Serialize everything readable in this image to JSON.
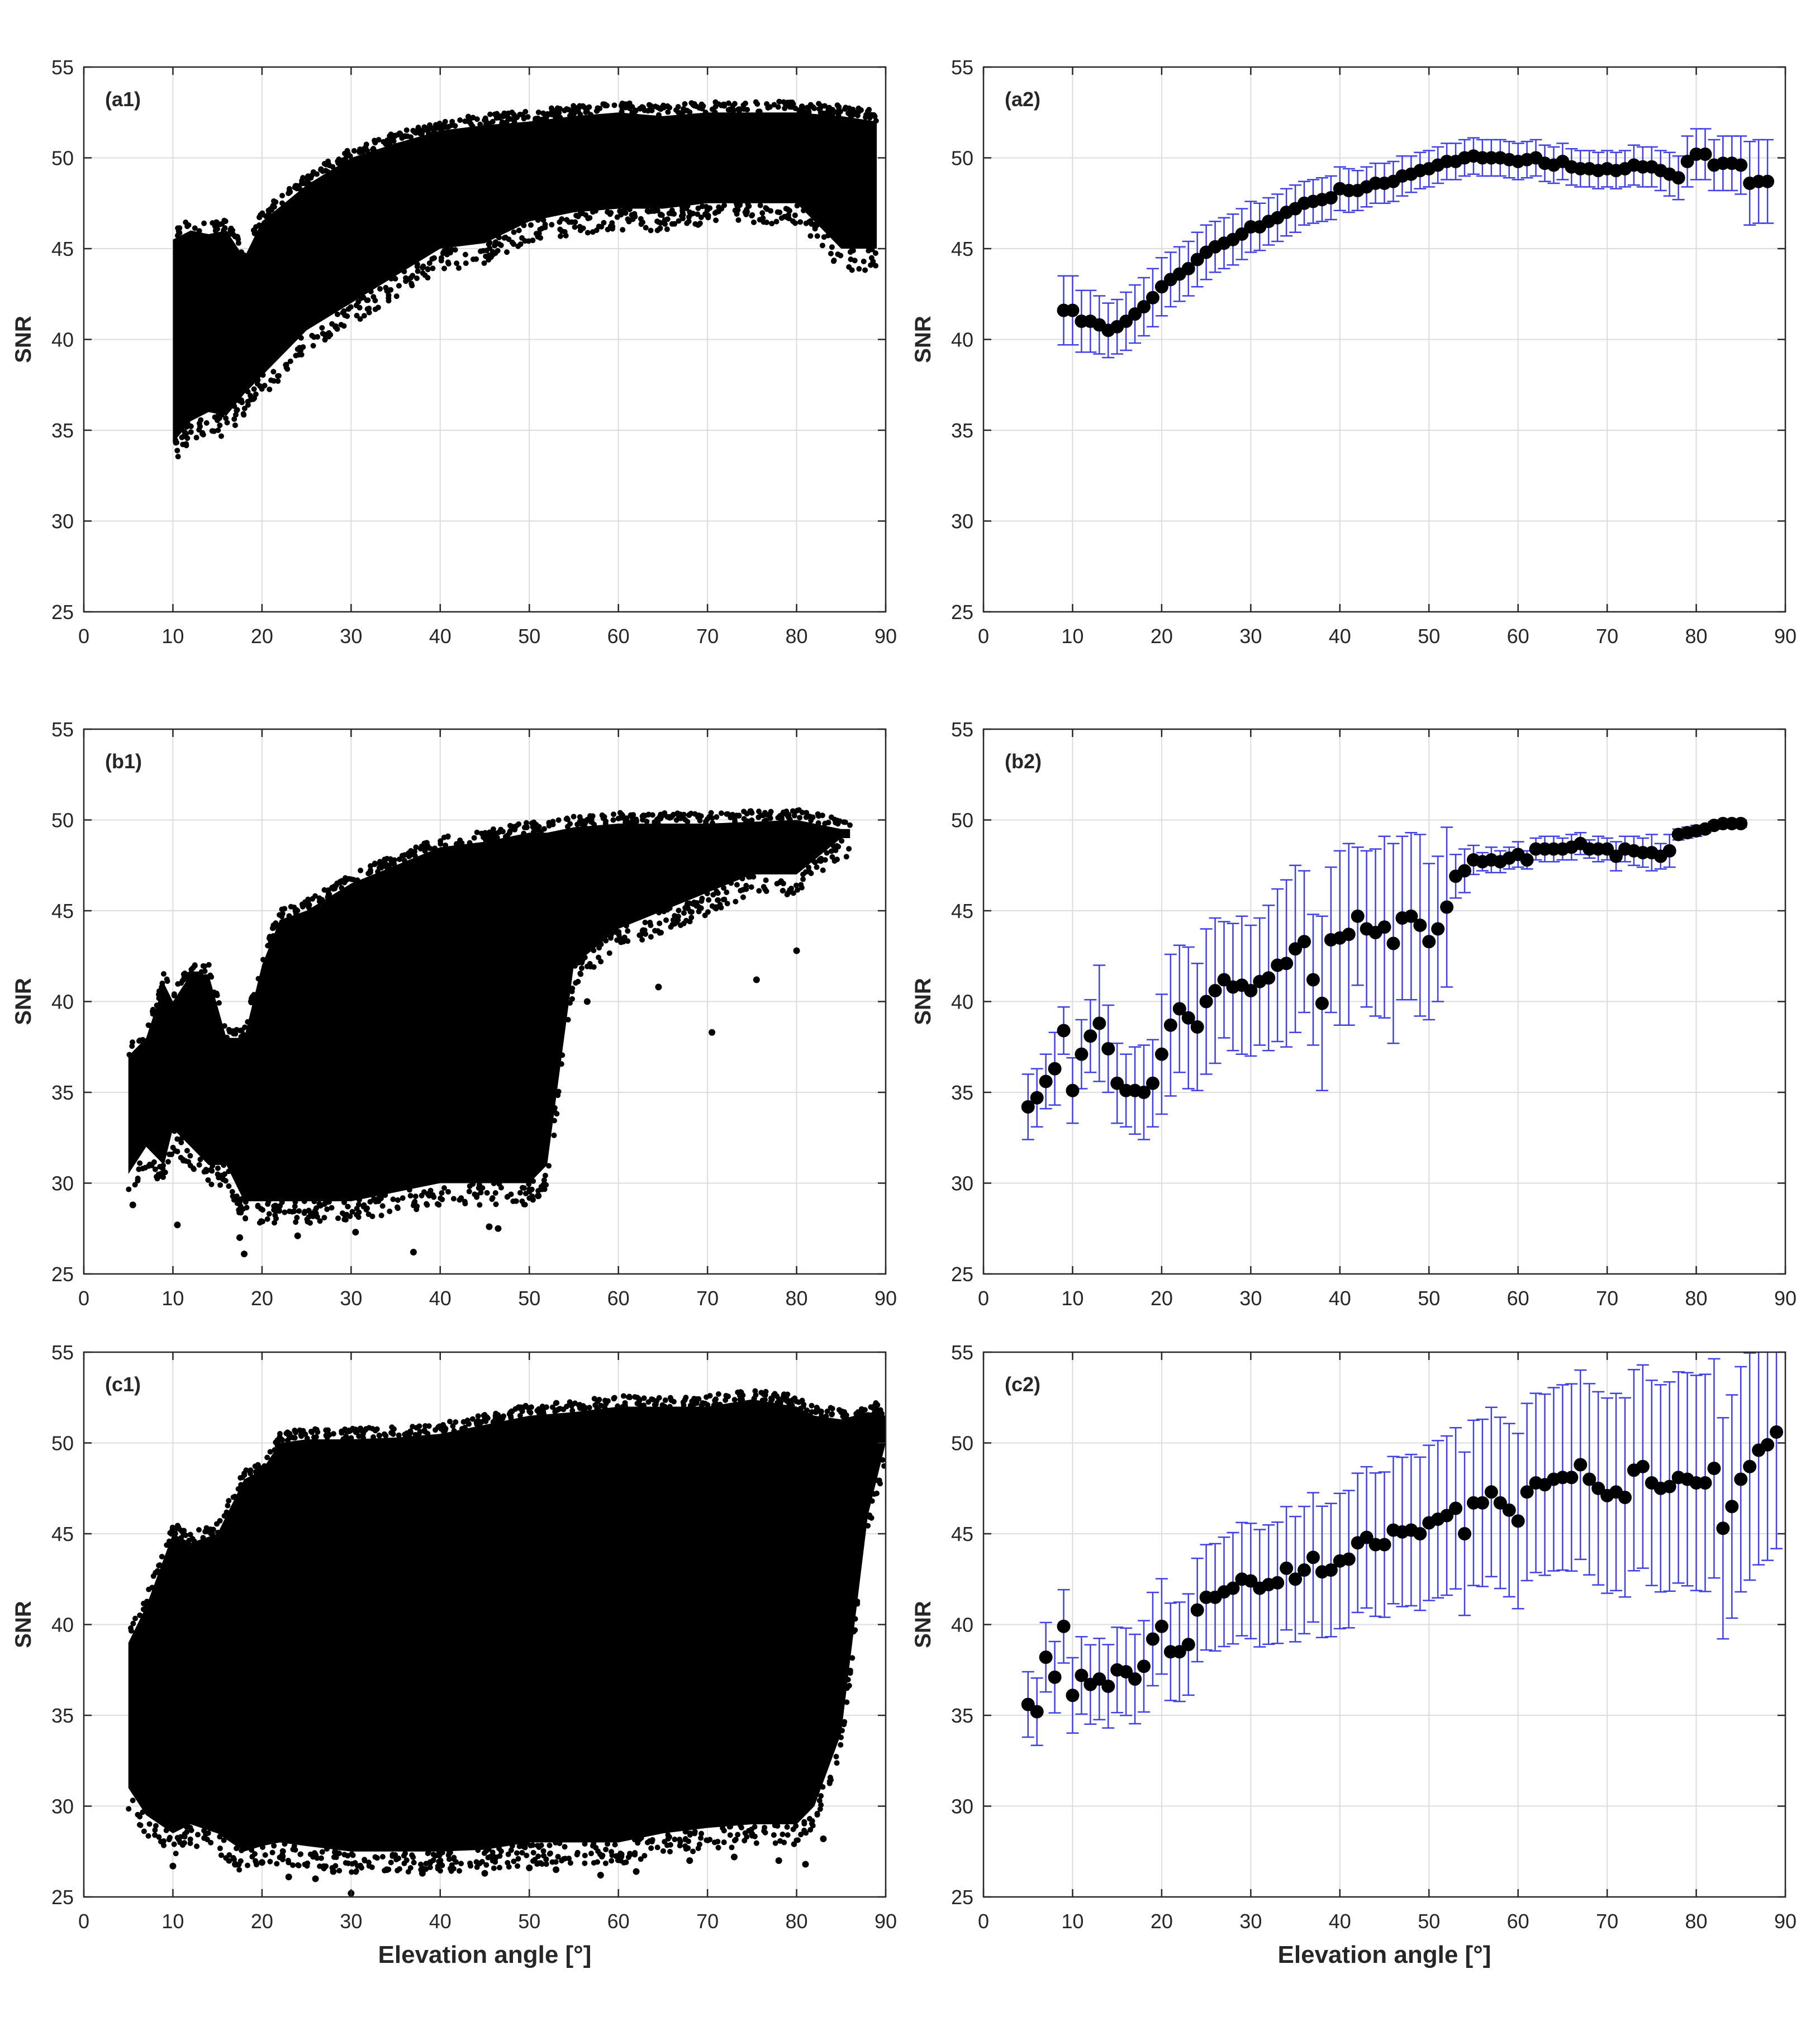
{
  "colors": {
    "axis": "#262626",
    "grid": "#dcdcdc",
    "marker": "#000000",
    "errorbar": "#3f3fe6"
  },
  "chart_data": [
    {
      "id": "a1",
      "type": "scatter",
      "panel_label": "(a1)",
      "xlabel": "",
      "ylabel": "SNR",
      "xlim": [
        0,
        90
      ],
      "ylim": [
        25,
        55
      ],
      "xticks": [
        0,
        10,
        20,
        30,
        40,
        50,
        60,
        70,
        80,
        90
      ],
      "yticks": [
        25,
        30,
        35,
        40,
        45,
        50,
        55
      ],
      "grid": true,
      "density_band": {
        "x": [
          10,
          12,
          14,
          16,
          18,
          20,
          25,
          30,
          35,
          40,
          45,
          50,
          55,
          60,
          65,
          70,
          75,
          80,
          85,
          89
        ],
        "upper": [
          45.5,
          46,
          45.8,
          46,
          44.5,
          46.5,
          48.5,
          50,
          50.8,
          51.5,
          51.8,
          52,
          52.3,
          52.5,
          52.3,
          52.5,
          52.5,
          52.5,
          52.3,
          52
        ],
        "lower": [
          34.3,
          35.5,
          36,
          35.8,
          37,
          38,
          40.5,
          42,
          43.5,
          45,
          45.3,
          46.5,
          47,
          47.2,
          47.2,
          47.5,
          47.5,
          47.5,
          45,
          45
        ]
      }
    },
    {
      "id": "a2",
      "type": "errorbar",
      "panel_label": "(a2)",
      "xlabel": "",
      "ylabel": "SNR",
      "xlim": [
        0,
        90
      ],
      "ylim": [
        25,
        55
      ],
      "xticks": [
        0,
        10,
        20,
        30,
        40,
        50,
        60,
        70,
        80,
        90
      ],
      "yticks": [
        25,
        30,
        35,
        40,
        45,
        50,
        55
      ],
      "grid": true,
      "x": [
        9,
        10,
        11,
        12,
        13,
        14,
        15,
        16,
        17,
        18,
        19,
        20,
        21,
        22,
        23,
        24,
        25,
        26,
        27,
        28,
        29,
        30,
        31,
        32,
        33,
        34,
        35,
        36,
        37,
        38,
        39,
        40,
        41,
        42,
        43,
        44,
        45,
        46,
        47,
        48,
        49,
        50,
        51,
        52,
        53,
        54,
        55,
        56,
        57,
        58,
        59,
        60,
        61,
        62,
        63,
        64,
        65,
        66,
        67,
        68,
        69,
        70,
        71,
        72,
        73,
        74,
        75,
        76,
        77,
        78,
        79,
        80,
        81,
        82,
        83,
        84,
        85,
        86,
        87,
        88
      ],
      "y": [
        41.6,
        41.6,
        41.0,
        41.0,
        40.8,
        40.5,
        40.7,
        41.0,
        41.4,
        41.8,
        42.3,
        42.9,
        43.3,
        43.6,
        43.9,
        44.4,
        44.8,
        45.1,
        45.3,
        45.5,
        45.8,
        46.2,
        46.2,
        46.5,
        46.7,
        47.0,
        47.2,
        47.5,
        47.6,
        47.7,
        47.8,
        48.3,
        48.2,
        48.2,
        48.4,
        48.6,
        48.6,
        48.7,
        49.0,
        49.1,
        49.3,
        49.4,
        49.6,
        49.8,
        49.8,
        50.0,
        50.1,
        50.0,
        50.0,
        50.0,
        49.9,
        49.8,
        49.9,
        50.0,
        49.7,
        49.6,
        49.8,
        49.5,
        49.4,
        49.4,
        49.3,
        49.4,
        49.3,
        49.4,
        49.6,
        49.5,
        49.5,
        49.3,
        49.1,
        48.9,
        49.8,
        50.2,
        50.2,
        49.6,
        49.7,
        49.7,
        49.6,
        48.6,
        48.7,
        48.7
      ],
      "err": [
        1.9,
        1.9,
        1.7,
        1.7,
        1.6,
        1.5,
        1.5,
        1.6,
        1.6,
        1.6,
        1.6,
        1.6,
        1.5,
        1.5,
        1.5,
        1.5,
        1.5,
        1.4,
        1.4,
        1.4,
        1.4,
        1.4,
        1.3,
        1.3,
        1.3,
        1.3,
        1.3,
        1.2,
        1.2,
        1.2,
        1.2,
        1.2,
        1.2,
        1.1,
        1.1,
        1.1,
        1.1,
        1.1,
        1.1,
        1.0,
        1.0,
        1.0,
        1.0,
        1.0,
        1.0,
        1.0,
        1.0,
        1.0,
        1.0,
        1.0,
        1.0,
        1.0,
        1.0,
        1.0,
        1.0,
        1.0,
        1.0,
        1.0,
        1.0,
        1.0,
        1.0,
        1.0,
        1.0,
        1.0,
        1.1,
        1.1,
        1.1,
        1.1,
        1.2,
        1.2,
        1.4,
        1.4,
        1.4,
        1.4,
        1.5,
        1.5,
        1.6,
        2.3,
        2.3,
        2.3
      ]
    },
    {
      "id": "b1",
      "type": "scatter",
      "panel_label": "(b1)",
      "xlabel": "",
      "ylabel": "SNR",
      "xlim": [
        0,
        90
      ],
      "ylim": [
        25,
        55
      ],
      "xticks": [
        0,
        10,
        20,
        30,
        40,
        50,
        60,
        70,
        80,
        90
      ],
      "yticks": [
        25,
        30,
        35,
        40,
        45,
        50,
        55
      ],
      "grid": true,
      "density_band": {
        "x": [
          5,
          7,
          9,
          10,
          12,
          14,
          16,
          18,
          20,
          22,
          25,
          30,
          35,
          40,
          45,
          50,
          52,
          55,
          60,
          65,
          70,
          75,
          80,
          85,
          86
        ],
        "upper": [
          37,
          38,
          41,
          40,
          41.5,
          41.5,
          38,
          38,
          42,
          44.5,
          45,
          46.5,
          47.5,
          48.5,
          48.8,
          49.3,
          49.3,
          49.6,
          49.8,
          49.8,
          49.8,
          49.9,
          50,
          49.5,
          49.5
        ],
        "lower": [
          30.5,
          32,
          31,
          33,
          32,
          31,
          31,
          29,
          29,
          29,
          29,
          29,
          29.5,
          30,
          30,
          30,
          31,
          42,
          44,
          45,
          46,
          47,
          47,
          49,
          49
        ]
      },
      "outliers": {
        "x": [
          5.5,
          10.5,
          17.5,
          18,
          24,
          30.5,
          37,
          45.5,
          46.5,
          51,
          56.5,
          64.5,
          70.5,
          75.5,
          80
        ],
        "y": [
          28.8,
          27.7,
          27.0,
          26.1,
          27.1,
          27.3,
          26.2,
          27.6,
          27.5,
          29.3,
          40.0,
          40.8,
          38.3,
          41.2,
          42.8
        ]
      }
    },
    {
      "id": "b2",
      "type": "errorbar",
      "panel_label": "(b2)",
      "xlabel": "",
      "ylabel": "SNR",
      "xlim": [
        0,
        90
      ],
      "ylim": [
        25,
        55
      ],
      "xticks": [
        0,
        10,
        20,
        30,
        40,
        50,
        60,
        70,
        80,
        90
      ],
      "yticks": [
        25,
        30,
        35,
        40,
        45,
        50,
        55
      ],
      "grid": true,
      "x": [
        5,
        6,
        7,
        8,
        9,
        10,
        11,
        12,
        13,
        14,
        15,
        16,
        17,
        18,
        19,
        20,
        21,
        22,
        23,
        24,
        25,
        26,
        27,
        28,
        29,
        30,
        31,
        32,
        33,
        34,
        35,
        36,
        37,
        38,
        39,
        40,
        41,
        42,
        43,
        44,
        45,
        46,
        47,
        48,
        49,
        50,
        51,
        52,
        53,
        54,
        55,
        56,
        57,
        58,
        59,
        60,
        61,
        62,
        63,
        64,
        65,
        66,
        67,
        68,
        69,
        70,
        71,
        72,
        73,
        74,
        75,
        76,
        77,
        78,
        79,
        80,
        81,
        82,
        83,
        84,
        85
      ],
      "y": [
        34.2,
        34.7,
        35.6,
        36.3,
        38.4,
        35.1,
        37.1,
        38.1,
        38.8,
        37.4,
        35.5,
        35.1,
        35.1,
        35.0,
        35.5,
        37.1,
        38.7,
        39.6,
        39.1,
        38.6,
        40.0,
        40.6,
        41.2,
        40.8,
        40.9,
        40.6,
        41.1,
        41.3,
        42.0,
        42.1,
        42.9,
        43.3,
        41.2,
        39.9,
        43.4,
        43.5,
        43.7,
        44.7,
        44.0,
        43.8,
        44.1,
        43.2,
        44.6,
        44.7,
        44.2,
        43.3,
        44.0,
        45.2,
        46.9,
        47.2,
        47.8,
        47.7,
        47.8,
        47.7,
        47.9,
        48.1,
        47.8,
        48.4,
        48.4,
        48.4,
        48.4,
        48.5,
        48.7,
        48.4,
        48.4,
        48.4,
        48.0,
        48.4,
        48.3,
        48.2,
        48.2,
        48.0,
        48.3,
        49.2,
        49.3,
        49.4,
        49.5,
        49.7,
        49.8,
        49.8,
        49.8
      ],
      "err": [
        1.8,
        1.6,
        1.5,
        2.0,
        1.3,
        1.8,
        1.9,
        2.0,
        3.2,
        2.4,
        2.2,
        2.0,
        2.4,
        2.6,
        2.4,
        3.3,
        3.9,
        3.5,
        3.9,
        3.5,
        4.0,
        4.0,
        3.2,
        3.5,
        3.8,
        3.6,
        3.5,
        4.0,
        4.2,
        4.6,
        4.6,
        3.9,
        3.6,
        4.8,
        4.0,
        4.8,
        5.0,
        3.8,
        4.3,
        4.6,
        5.0,
        5.5,
        4.5,
        4.6,
        5.0,
        4.3,
        4.0,
        4.4,
        1.2,
        1.2,
        0.8,
        0.5,
        0.7,
        0.6,
        0.6,
        0.7,
        0.5,
        0.6,
        0.7,
        0.7,
        0.6,
        0.7,
        0.6,
        0.5,
        0.7,
        0.6,
        0.8,
        0.7,
        0.8,
        0.8,
        1.0,
        0.7,
        0.9,
        0.3,
        0.3,
        0.3,
        0.2,
        0.2,
        0.2,
        0.2,
        0.2
      ]
    },
    {
      "id": "c1",
      "type": "scatter",
      "panel_label": "(c1)",
      "xlabel": "Elevation angle [°]",
      "ylabel": "SNR",
      "xlim": [
        0,
        90
      ],
      "ylim": [
        25,
        55
      ],
      "xticks": [
        0,
        10,
        20,
        30,
        40,
        50,
        60,
        70,
        80,
        90
      ],
      "yticks": [
        25,
        30,
        35,
        40,
        45,
        50,
        55
      ],
      "grid": true,
      "density_band": {
        "x": [
          5,
          7,
          10,
          12,
          15,
          18,
          20,
          22,
          25,
          30,
          35,
          40,
          45,
          50,
          55,
          60,
          65,
          70,
          75,
          80,
          82,
          85,
          88,
          90
        ],
        "upper": [
          39,
          41,
          45,
          44.5,
          45,
          48,
          48.5,
          50,
          50.2,
          50.2,
          50.3,
          50.5,
          51,
          51.5,
          51.7,
          52,
          52,
          52,
          52.4,
          52,
          51.5,
          51.3,
          51.7,
          51.5
        ],
        "lower": [
          31,
          29.5,
          28.5,
          29,
          28.5,
          27.5,
          27.8,
          28,
          27.8,
          27.5,
          27.5,
          27.5,
          27.6,
          28,
          28,
          28,
          28.5,
          28.8,
          29,
          29,
          30,
          34,
          46,
          50
        ]
      },
      "outliers": {
        "x": [
          10,
          17,
          20,
          23,
          26,
          28,
          30,
          34,
          38,
          40,
          45,
          50,
          53,
          58,
          62,
          68,
          73,
          78,
          81,
          83
        ],
        "y": [
          26.7,
          26.8,
          26.9,
          26.1,
          26.0,
          26.4,
          25.2,
          26.5,
          26.3,
          26.8,
          26.3,
          26.6,
          26.5,
          26.2,
          26.4,
          27.0,
          27.2,
          27.0,
          26.8,
          28.2
        ]
      }
    },
    {
      "id": "c2",
      "type": "errorbar",
      "panel_label": "(c2)",
      "xlabel": "Elevation angle [°]",
      "ylabel": "SNR",
      "xlim": [
        0,
        90
      ],
      "ylim": [
        25,
        55
      ],
      "xticks": [
        0,
        10,
        20,
        30,
        40,
        50,
        60,
        70,
        80,
        90
      ],
      "yticks": [
        25,
        30,
        35,
        40,
        45,
        50,
        55
      ],
      "grid": true,
      "x": [
        5,
        6,
        7,
        8,
        9,
        10,
        11,
        12,
        13,
        14,
        15,
        16,
        17,
        18,
        19,
        20,
        21,
        22,
        23,
        24,
        25,
        26,
        27,
        28,
        29,
        30,
        31,
        32,
        33,
        34,
        35,
        36,
        37,
        38,
        39,
        40,
        41,
        42,
        43,
        44,
        45,
        46,
        47,
        48,
        49,
        50,
        51,
        52,
        53,
        54,
        55,
        56,
        57,
        58,
        59,
        60,
        61,
        62,
        63,
        64,
        65,
        66,
        67,
        68,
        69,
        70,
        71,
        72,
        73,
        74,
        75,
        76,
        77,
        78,
        79,
        80,
        81,
        82,
        83,
        84,
        85,
        86,
        87,
        88,
        89
      ],
      "y": [
        35.6,
        35.2,
        38.2,
        37.1,
        39.9,
        36.1,
        37.2,
        36.7,
        37.0,
        36.6,
        37.5,
        37.4,
        37.0,
        37.7,
        39.2,
        39.9,
        38.5,
        38.5,
        38.9,
        40.8,
        41.5,
        41.5,
        41.8,
        42.0,
        42.5,
        42.4,
        42.0,
        42.2,
        42.3,
        43.1,
        42.5,
        43.0,
        43.7,
        42.9,
        43.0,
        43.5,
        43.6,
        44.5,
        44.8,
        44.4,
        44.4,
        45.2,
        45.1,
        45.2,
        45.0,
        45.6,
        45.8,
        46.0,
        46.4,
        45.0,
        46.7,
        46.7,
        47.3,
        46.7,
        46.3,
        45.7,
        47.3,
        47.8,
        47.7,
        48.0,
        48.1,
        48.1,
        48.8,
        48.0,
        47.5,
        47.1,
        47.3,
        47.0,
        48.5,
        48.7,
        47.8,
        47.5,
        47.6,
        48.1,
        48.0,
        47.8,
        47.8,
        48.6,
        45.3,
        46.5,
        48.0,
        48.7,
        49.6,
        49.9,
        50.6
      ]
    }
  ]
}
